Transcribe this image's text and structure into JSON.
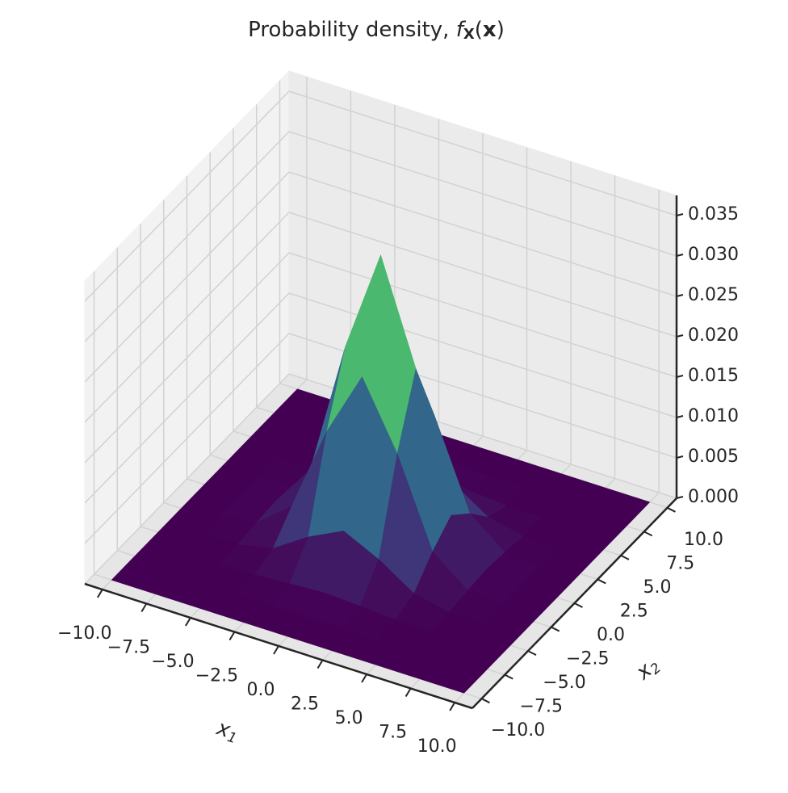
{
  "chart_data": {
    "type": "surface",
    "title": [
      "Probability density, ",
      "f",
      "X",
      "(",
      "x",
      ")"
    ],
    "xlabel": [
      "x",
      "1"
    ],
    "ylabel": [
      "x",
      "2"
    ],
    "x": [
      -10,
      -8,
      -6,
      -4,
      -2,
      0,
      2,
      4,
      6,
      8,
      10
    ],
    "y": [
      -10,
      -8,
      -6,
      -4,
      -2,
      0,
      2,
      4,
      6,
      8,
      10
    ],
    "z": [
      [
        0,
        0,
        0,
        0,
        0,
        0,
        0,
        0,
        0,
        0,
        0
      ],
      [
        0,
        0,
        0,
        0,
        0,
        0,
        0,
        0,
        0,
        0,
        0
      ],
      [
        0,
        0,
        1e-05,
        0.00011,
        0.00042,
        0.00065,
        0.00042,
        0.00011,
        1e-05,
        0,
        0
      ],
      [
        0,
        0,
        0.00011,
        0.00101,
        0.00384,
        0.00598,
        0.00384,
        0.00101,
        0.00011,
        0,
        0
      ],
      [
        0,
        0,
        0.00042,
        0.00384,
        0.01456,
        0.0227,
        0.01456,
        0.00384,
        0.00042,
        0,
        0
      ],
      [
        0,
        0,
        0.00065,
        0.00598,
        0.0227,
        0.0354,
        0.0227,
        0.00598,
        0.00065,
        0,
        0
      ],
      [
        0,
        0,
        0.00042,
        0.00384,
        0.01456,
        0.0227,
        0.01456,
        0.00384,
        0.00042,
        0,
        0
      ],
      [
        0,
        0,
        0.00011,
        0.00101,
        0.00384,
        0.00598,
        0.00384,
        0.00101,
        0.00011,
        0,
        0
      ],
      [
        0,
        0,
        1e-05,
        0.00011,
        0.00042,
        0.00065,
        0.00042,
        0.00011,
        1e-05,
        0,
        0
      ],
      [
        0,
        0,
        0,
        0,
        0,
        0,
        0,
        0,
        0,
        0,
        0
      ],
      [
        0,
        0,
        0,
        0,
        0,
        0,
        0,
        0,
        0,
        0,
        0
      ]
    ],
    "colormap": [
      "#440154",
      "#3b528b",
      "#21918c",
      "#5ec962",
      "#fde725"
    ],
    "xlim": [
      -11,
      11
    ],
    "ylim": [
      -11,
      11
    ],
    "zlim": [
      0,
      0.0375
    ],
    "xticks": [
      {
        "value": -10,
        "label": "−10.0"
      },
      {
        "value": -7.5,
        "label": "−7.5"
      },
      {
        "value": -5,
        "label": "−5.0"
      },
      {
        "value": -2.5,
        "label": "−2.5"
      },
      {
        "value": 0,
        "label": "0.0"
      },
      {
        "value": 2.5,
        "label": "2.5"
      },
      {
        "value": 5,
        "label": "5.0"
      },
      {
        "value": 7.5,
        "label": "7.5"
      },
      {
        "value": 10,
        "label": "10.0"
      }
    ],
    "yticks": [
      {
        "value": -10,
        "label": "−10.0"
      },
      {
        "value": -7.5,
        "label": "−7.5"
      },
      {
        "value": -5,
        "label": "−5.0"
      },
      {
        "value": -2.5,
        "label": "−2.5"
      },
      {
        "value": 0,
        "label": "0.0"
      },
      {
        "value": 2.5,
        "label": "2.5"
      },
      {
        "value": 5,
        "label": "5.0"
      },
      {
        "value": 7.5,
        "label": "7.5"
      },
      {
        "value": 10,
        "label": "10.0"
      }
    ],
    "zticks": [
      {
        "value": 0,
        "label": "0.000"
      },
      {
        "value": 0.005,
        "label": "0.005"
      },
      {
        "value": 0.01,
        "label": "0.010"
      },
      {
        "value": 0.015,
        "label": "0.015"
      },
      {
        "value": 0.02,
        "label": "0.020"
      },
      {
        "value": 0.025,
        "label": "0.025"
      },
      {
        "value": 0.03,
        "label": "0.030"
      },
      {
        "value": 0.035,
        "label": "0.035"
      }
    ],
    "grid": true
  }
}
